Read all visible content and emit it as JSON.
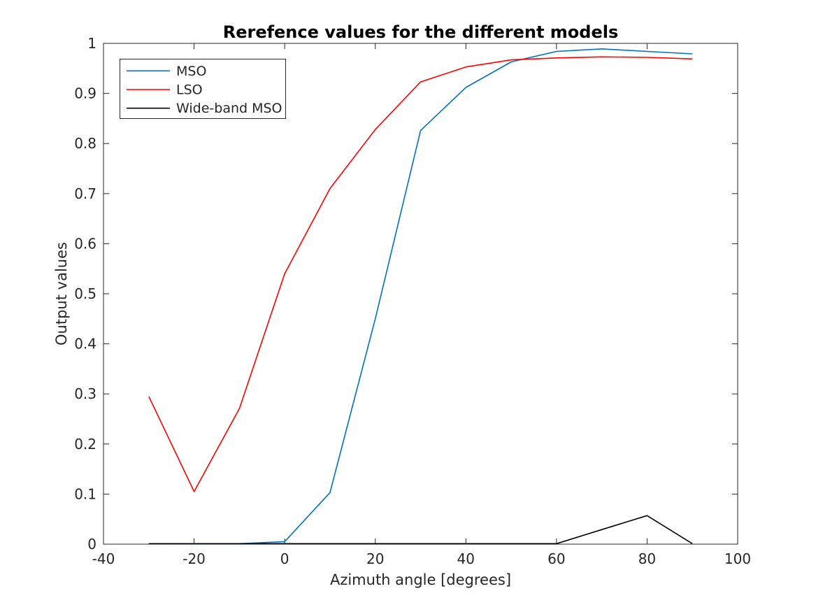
{
  "figure": {
    "background": "#ffffff",
    "axis_color": "#262626",
    "text_color": "#262626"
  },
  "chart_data": {
    "type": "line",
    "title": "Rerefence values for the different models",
    "xlabel": "Azimuth angle [degrees]",
    "ylabel": "Output values",
    "xlim": [
      -40,
      100
    ],
    "ylim": [
      0,
      1
    ],
    "grid": false,
    "x_ticks": [
      -40,
      -20,
      0,
      20,
      40,
      60,
      80,
      100
    ],
    "x_tick_labels": [
      "-40",
      "-20",
      "0",
      "20",
      "40",
      "60",
      "80",
      "100"
    ],
    "y_ticks": [
      0,
      0.1,
      0.2,
      0.3,
      0.4,
      0.5,
      0.6,
      0.7,
      0.8,
      0.9,
      1
    ],
    "y_tick_labels": [
      "0",
      "0.1",
      "0.2",
      "0.3",
      "0.4",
      "0.5",
      "0.6",
      "0.7",
      "0.8",
      "0.9",
      "1"
    ],
    "x": [
      -30,
      -20,
      -10,
      0,
      10,
      20,
      30,
      40,
      50,
      60,
      70,
      80,
      90
    ],
    "series": [
      {
        "name": "MSO",
        "color": "#0072BD",
        "values": [
          0.001,
          0.001,
          0.001,
          0.005,
          0.103,
          0.45,
          0.826,
          0.912,
          0.963,
          0.984,
          0.989,
          0.984,
          0.979
        ]
      },
      {
        "name": "LSO",
        "color": "#FF0000",
        "values": [
          0.295,
          0.105,
          0.271,
          0.54,
          0.71,
          0.828,
          0.923,
          0.953,
          0.967,
          0.971,
          0.973,
          0.972,
          0.969
        ]
      },
      {
        "name": "Wide-band MSO",
        "color": "#000000",
        "values": [
          0.001,
          0.001,
          0.001,
          0.001,
          0.001,
          0.001,
          0.001,
          0.001,
          0.001,
          0.001,
          0.029,
          0.057,
          0.001
        ]
      }
    ],
    "legend": {
      "position": "upper-left",
      "border": true
    }
  }
}
